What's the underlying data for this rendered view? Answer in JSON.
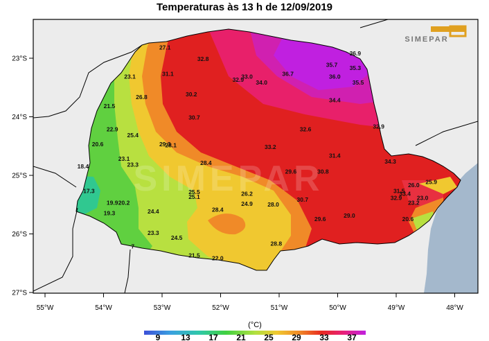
{
  "title": "Temperaturas às 13 h de 12/09/2019",
  "logo_text": "SIMEPAR",
  "watermark_text": "SIMEPAR",
  "axes": {
    "y_ticks": [
      {
        "value": -23,
        "label": "23°S"
      },
      {
        "value": -24,
        "label": "24°S"
      },
      {
        "value": -25,
        "label": "25°S"
      },
      {
        "value": -26,
        "label": "26°S"
      },
      {
        "value": -27,
        "label": "27°S"
      }
    ],
    "x_ticks": [
      {
        "value": -55,
        "label": "55°W"
      },
      {
        "value": -54,
        "label": "54°W"
      },
      {
        "value": -53,
        "label": "53°W"
      },
      {
        "value": -52,
        "label": "52°W"
      },
      {
        "value": -51,
        "label": "51°W"
      },
      {
        "value": -50,
        "label": "50°W"
      },
      {
        "value": -49,
        "label": "49°W"
      },
      {
        "value": -48,
        "label": "48°W"
      }
    ],
    "lon_range": [
      -55.2,
      -47.8
    ],
    "lat_range": [
      -27.0,
      -22.5
    ]
  },
  "colorbar": {
    "unit": "(°C)",
    "ticks": [
      "9",
      "13",
      "17",
      "21",
      "25",
      "29",
      "33",
      "37"
    ],
    "colors": [
      "#4050d8",
      "#38a8e0",
      "#30c8a0",
      "#40d040",
      "#a8e038",
      "#f0d030",
      "#f0a030",
      "#ee6020",
      "#e02020",
      "#e8206a",
      "#e020b8",
      "#c020e0"
    ]
  },
  "colors": {
    "ocean": "#a4b8cc",
    "land_outside": "#ececec",
    "border": "#000000",
    "grid_frame": "#000000"
  },
  "stations": [
    {
      "lon": -52.95,
      "lat": -22.85,
      "value": "27.1"
    },
    {
      "lon": -52.3,
      "lat": -23.05,
      "value": "32.8"
    },
    {
      "lon": -51.55,
      "lat": -23.35,
      "value": "33.0"
    },
    {
      "lon": -51.7,
      "lat": -23.4,
      "value": "32.9"
    },
    {
      "lon": -51.3,
      "lat": -23.45,
      "value": "34.0"
    },
    {
      "lon": -50.85,
      "lat": -23.3,
      "value": "36.7"
    },
    {
      "lon": -50.1,
      "lat": -23.15,
      "value": "35.7"
    },
    {
      "lon": -50.05,
      "lat": -23.35,
      "value": "36.0"
    },
    {
      "lon": -49.7,
      "lat": -23.2,
      "value": "35.3"
    },
    {
      "lon": -49.65,
      "lat": -23.45,
      "value": "35.5"
    },
    {
      "lon": -49.7,
      "lat": -22.95,
      "value": "36.9"
    },
    {
      "lon": -50.05,
      "lat": -23.75,
      "value": "34.4"
    },
    {
      "lon": -49.3,
      "lat": -24.2,
      "value": "32.9"
    },
    {
      "lon": -50.55,
      "lat": -24.25,
      "value": "32.6"
    },
    {
      "lon": -53.55,
      "lat": -23.35,
      "value": "23.1"
    },
    {
      "lon": -52.9,
      "lat": -23.3,
      "value": "31.1"
    },
    {
      "lon": -52.5,
      "lat": -23.65,
      "value": "30.2"
    },
    {
      "lon": -53.35,
      "lat": -23.7,
      "value": "26.8"
    },
    {
      "lon": -53.9,
      "lat": -23.85,
      "value": "21.5"
    },
    {
      "lon": -52.45,
      "lat": -24.05,
      "value": "30.7"
    },
    {
      "lon": -53.85,
      "lat": -24.25,
      "value": "22.9"
    },
    {
      "lon": -53.5,
      "lat": -24.35,
      "value": "25.4"
    },
    {
      "lon": -54.1,
      "lat": -24.5,
      "value": "20.6"
    },
    {
      "lon": -52.95,
      "lat": -24.5,
      "value": "29.3"
    },
    {
      "lon": -52.85,
      "lat": -24.52,
      "value": "28.1"
    },
    {
      "lon": -51.15,
      "lat": -24.55,
      "value": "33.2"
    },
    {
      "lon": -53.65,
      "lat": -24.75,
      "value": "23.1"
    },
    {
      "lon": -53.5,
      "lat": -24.85,
      "value": "23.3"
    },
    {
      "lon": -54.35,
      "lat": -24.88,
      "value": "18.4"
    },
    {
      "lon": -52.25,
      "lat": -24.82,
      "value": "28.4"
    },
    {
      "lon": -50.05,
      "lat": -24.7,
      "value": "31.4"
    },
    {
      "lon": -49.1,
      "lat": -24.8,
      "value": "34.3"
    },
    {
      "lon": -50.8,
      "lat": -24.97,
      "value": "29.6"
    },
    {
      "lon": -50.25,
      "lat": -24.97,
      "value": "30.8"
    },
    {
      "lon": -54.25,
      "lat": -25.3,
      "value": "17.3"
    },
    {
      "lon": -52.45,
      "lat": -25.32,
      "value": "25.5"
    },
    {
      "lon": -52.45,
      "lat": -25.4,
      "value": "25.1"
    },
    {
      "lon": -51.55,
      "lat": -25.35,
      "value": "26.2"
    },
    {
      "lon": -51.55,
      "lat": -25.52,
      "value": "24.9"
    },
    {
      "lon": -51.1,
      "lat": -25.53,
      "value": "28.0"
    },
    {
      "lon": -50.6,
      "lat": -25.45,
      "value": "30.7"
    },
    {
      "lon": -48.95,
      "lat": -25.3,
      "value": "31.5"
    },
    {
      "lon": -48.85,
      "lat": -25.35,
      "value": "33.4"
    },
    {
      "lon": -49.0,
      "lat": -25.42,
      "value": "32.9"
    },
    {
      "lon": -48.7,
      "lat": -25.2,
      "value": "26.0"
    },
    {
      "lon": -48.4,
      "lat": -25.15,
      "value": "25.9"
    },
    {
      "lon": -48.55,
      "lat": -25.42,
      "value": "23.0"
    },
    {
      "lon": -48.7,
      "lat": -25.5,
      "value": "23.2"
    },
    {
      "lon": -53.85,
      "lat": -25.5,
      "value": "19.9"
    },
    {
      "lon": -53.65,
      "lat": -25.5,
      "value": "20.2"
    },
    {
      "lon": -53.9,
      "lat": -25.68,
      "value": "19.3"
    },
    {
      "lon": -53.15,
      "lat": -25.65,
      "value": "24.4"
    },
    {
      "lon": -52.05,
      "lat": -25.62,
      "value": "28.4"
    },
    {
      "lon": -50.3,
      "lat": -25.78,
      "value": "29.6"
    },
    {
      "lon": -49.8,
      "lat": -25.72,
      "value": "29.0"
    },
    {
      "lon": -48.8,
      "lat": -25.78,
      "value": "20.6"
    },
    {
      "lon": -53.15,
      "lat": -26.02,
      "value": "23.3"
    },
    {
      "lon": -52.75,
      "lat": -26.1,
      "value": "24.5"
    },
    {
      "lon": -53.5,
      "lat": -26.25,
      "value": "7"
    },
    {
      "lon": -51.05,
      "lat": -26.2,
      "value": "28.8"
    },
    {
      "lon": -52.45,
      "lat": -26.4,
      "value": "21.5"
    },
    {
      "lon": -52.05,
      "lat": -26.45,
      "value": "22.0"
    }
  ]
}
